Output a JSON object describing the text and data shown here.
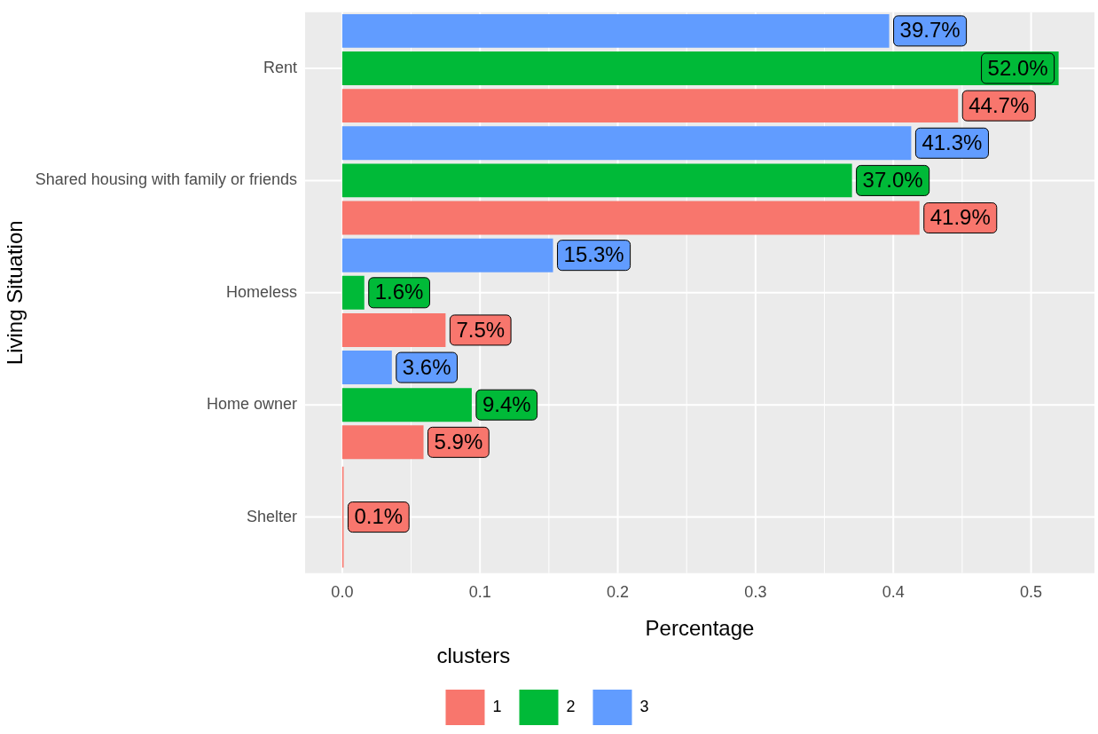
{
  "chart_data": {
    "type": "bar",
    "orientation": "horizontal",
    "xlabel": "Percentage",
    "ylabel": "Living Situation",
    "legend_title": "clusters",
    "legend": "bottom",
    "grid": true,
    "categories": [
      "Rent",
      "Shared housing with family or friends",
      "Homeless",
      "Home owner",
      "Shelter"
    ],
    "xlim": [
      -0.027,
      0.546
    ],
    "xticks": [
      {
        "value": 0,
        "label": "0.0"
      },
      0.1,
      0.2,
      0.3,
      0.4,
      0.5
    ],
    "data_labels": true,
    "series": [
      {
        "name": "1",
        "color": "#f8766d",
        "values": [
          0.447,
          0.419,
          0.075,
          0.059,
          0.001
        ],
        "value_labels": [
          "44.7%",
          "41.9%",
          "7.5%",
          "5.9%",
          "0.1%"
        ]
      },
      {
        "name": "2",
        "color": "#00ba38",
        "values": [
          0.52,
          0.37,
          0.016,
          0.094,
          null
        ],
        "value_labels": [
          "52.0%",
          "37.0%",
          "1.6%",
          "9.4%",
          null
        ]
      },
      {
        "name": "3",
        "color": "#619cff",
        "values": [
          0.397,
          0.413,
          0.153,
          0.036,
          null
        ],
        "value_labels": [
          "39.7%",
          "41.3%",
          "15.3%",
          "3.6%",
          null
        ]
      }
    ]
  }
}
